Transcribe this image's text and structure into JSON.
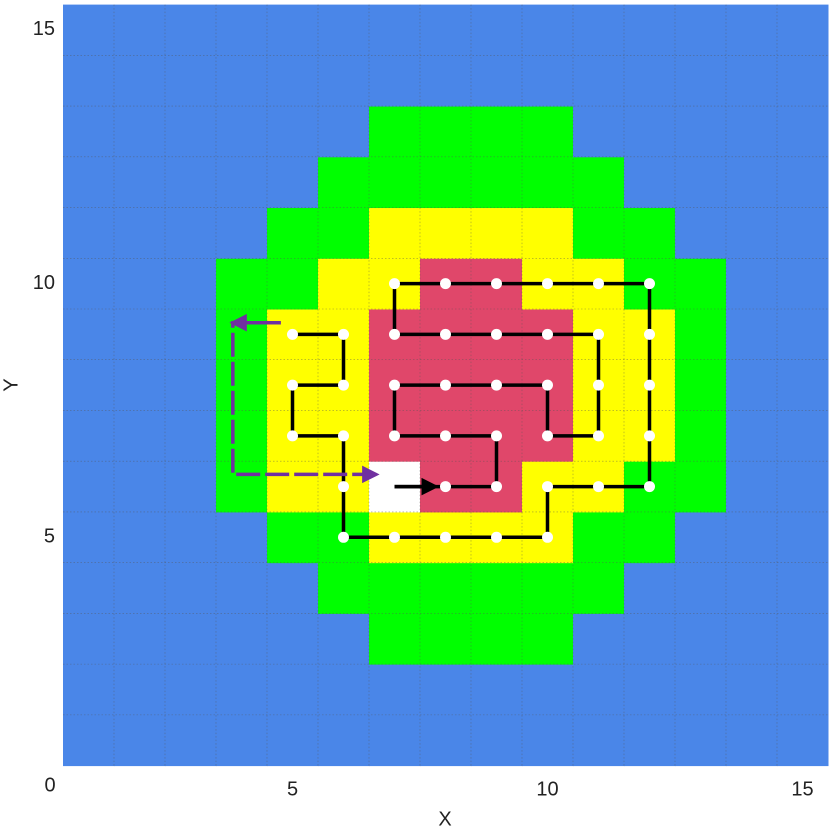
{
  "chart_data": {
    "type": "heatmap",
    "x_label": "X",
    "y_label": "Y",
    "corner_label": "0",
    "xlim": [
      0.5,
      15.5
    ],
    "ylim": [
      0.5,
      15.5
    ],
    "xticks": [
      5,
      10,
      15
    ],
    "yticks": [
      5,
      10,
      15
    ],
    "grid": true,
    "colors": [
      "#4a86e8",
      "#00ff00",
      "#ffff00",
      "#e0476a",
      "#ffffff"
    ],
    "z": [
      [
        0,
        0,
        0,
        0,
        0,
        0,
        0,
        0,
        0,
        0,
        0,
        0,
        0,
        0,
        0
      ],
      [
        0,
        0,
        0,
        0,
        0,
        0,
        0,
        0,
        0,
        0,
        0,
        0,
        0,
        0,
        0
      ],
      [
        0,
        0,
        0,
        0,
        0,
        0,
        1,
        1,
        1,
        1,
        0,
        0,
        0,
        0,
        0
      ],
      [
        0,
        0,
        0,
        0,
        0,
        1,
        1,
        1,
        1,
        1,
        1,
        0,
        0,
        0,
        0
      ],
      [
        0,
        0,
        0,
        0,
        1,
        1,
        2,
        2,
        2,
        2,
        1,
        1,
        0,
        0,
        0
      ],
      [
        0,
        0,
        0,
        1,
        2,
        2,
        4,
        3,
        3,
        2,
        2,
        1,
        1,
        0,
        0
      ],
      [
        0,
        0,
        0,
        1,
        2,
        2,
        3,
        3,
        3,
        3,
        2,
        2,
        1,
        0,
        0
      ],
      [
        0,
        0,
        0,
        1,
        2,
        2,
        3,
        3,
        3,
        3,
        2,
        2,
        1,
        0,
        0
      ],
      [
        0,
        0,
        0,
        1,
        2,
        2,
        3,
        3,
        3,
        3,
        2,
        2,
        1,
        0,
        0
      ],
      [
        0,
        0,
        0,
        1,
        1,
        2,
        2,
        3,
        3,
        2,
        2,
        1,
        1,
        0,
        0
      ],
      [
        0,
        0,
        0,
        0,
        1,
        1,
        2,
        2,
        2,
        2,
        1,
        1,
        0,
        0,
        0
      ],
      [
        0,
        0,
        0,
        0,
        0,
        1,
        1,
        1,
        1,
        1,
        1,
        0,
        0,
        0,
        0
      ],
      [
        0,
        0,
        0,
        0,
        0,
        0,
        1,
        1,
        1,
        1,
        0,
        0,
        0,
        0,
        0
      ],
      [
        0,
        0,
        0,
        0,
        0,
        0,
        0,
        0,
        0,
        0,
        0,
        0,
        0,
        0,
        0
      ],
      [
        0,
        0,
        0,
        0,
        0,
        0,
        0,
        0,
        0,
        0,
        0,
        0,
        0,
        0,
        0
      ]
    ],
    "series": [
      {
        "color": "#000000",
        "markers": true,
        "x": [
          7,
          8,
          9,
          9,
          8,
          7,
          7,
          8,
          9,
          10,
          10,
          11,
          11,
          11,
          10,
          9,
          8,
          7,
          7,
          8,
          9,
          10,
          11,
          12,
          12,
          12,
          12,
          12,
          11,
          10,
          10,
          9,
          8,
          7,
          6,
          6,
          6,
          5,
          5,
          6,
          6,
          5
        ],
        "y": [
          6,
          6,
          6,
          7,
          7,
          7,
          8,
          8,
          8,
          8,
          7,
          7,
          8,
          9,
          9,
          9,
          9,
          9,
          10,
          10,
          10,
          10,
          10,
          10,
          9,
          8,
          7,
          6,
          6,
          6,
          5,
          5,
          5,
          5,
          5,
          6,
          7,
          7,
          8,
          8,
          9,
          9
        ]
      },
      {
        "color": "#7030a0",
        "markers": false,
        "dashed": true,
        "x": [
          4.77,
          3.83,
          3.83,
          6.64
        ],
        "y": [
          9.23,
          9.23,
          6.24,
          6.24
        ]
      }
    ]
  }
}
